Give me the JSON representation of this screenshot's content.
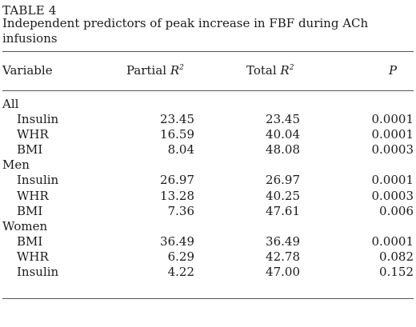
{
  "table": {
    "label": "TABLE 4",
    "caption": "Independent predictors of peak increase in FBF during ACh infusions",
    "headers": {
      "variable": "Variable",
      "partial": "Partial ",
      "total": "Total ",
      "r": "R",
      "sq": "2",
      "p": "P"
    },
    "groups": [
      {
        "name": "All",
        "rows": [
          {
            "variable": "Insulin",
            "partial": "23.45",
            "total": "23.45",
            "p": "0.0001"
          },
          {
            "variable": "WHR",
            "partial": "16.59",
            "total": "40.04",
            "p": "0.0001"
          },
          {
            "variable": "BMI",
            "partial": "8.04",
            "total": "48.08",
            "p": "0.0003"
          }
        ]
      },
      {
        "name": "Men",
        "rows": [
          {
            "variable": "Insulin",
            "partial": "26.97",
            "total": "26.97",
            "p": "0.0001"
          },
          {
            "variable": "WHR",
            "partial": "13.28",
            "total": "40.25",
            "p": "0.0003"
          },
          {
            "variable": "BMI",
            "partial": "7.36",
            "total": "47.61",
            "p": "0.006"
          }
        ]
      },
      {
        "name": "Women",
        "rows": [
          {
            "variable": "BMI",
            "partial": "36.49",
            "total": "36.49",
            "p": "0.0001"
          },
          {
            "variable": "WHR",
            "partial": "6.29",
            "total": "42.78",
            "p": "0.082"
          },
          {
            "variable": "Insulin",
            "partial": "4.22",
            "total": "47.00",
            "p": "0.152"
          }
        ]
      }
    ]
  }
}
